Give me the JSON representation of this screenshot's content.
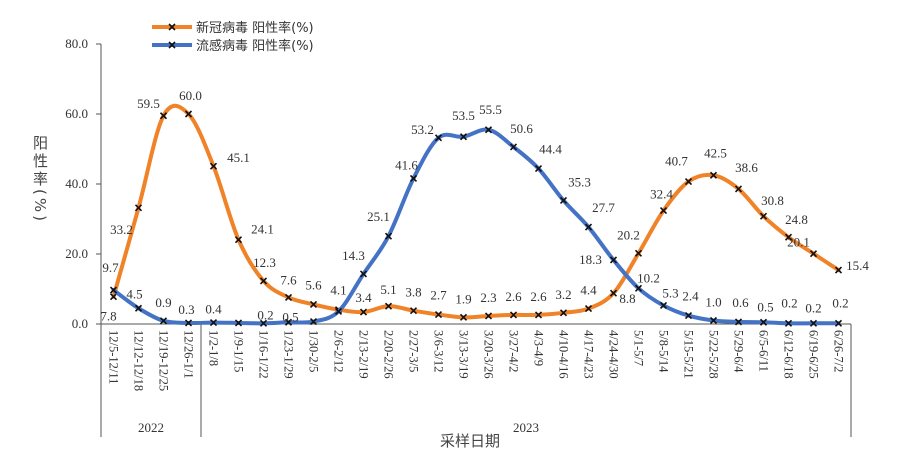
{
  "chart_data": {
    "type": "line",
    "title": "",
    "xlabel": "采样日期",
    "ylabel": "阳性率(%)",
    "ylim": [
      0,
      80
    ],
    "yticks": [
      "0.0",
      "20.0",
      "40.0",
      "60.0",
      "80.0"
    ],
    "grid": false,
    "legend": "top-left",
    "year_groups": [
      {
        "label": "2022",
        "count": 4
      },
      {
        "label": "2023",
        "count": 26
      }
    ],
    "categories": [
      "12/5-12/11",
      "12/12-12/18",
      "12/19-12/25",
      "12/26-1/1",
      "1/2-1/8",
      "1/9-1/15",
      "1/16-1/22",
      "1/23-1/29",
      "1/30-2/5",
      "2/6-2/12",
      "2/13-2/19",
      "2/20-2/26",
      "2/27-3/5",
      "3/6-3/12",
      "3/13-3/19",
      "3/20-3/26",
      "3/27-4/2",
      "4/3-4/9",
      "4/10-4/16",
      "4/17-4/23",
      "4/24-4/30",
      "5/1-5/7",
      "5/8-5/14",
      "5/15-5/21",
      "5/22-5/28",
      "5/29-6/4",
      "6/5-6/11",
      "6/12-6/18",
      "6/19-6/25",
      "6/26-7/2"
    ],
    "series": [
      {
        "name": "新冠病毒 阳性率(%)",
        "color": "#F08228",
        "values": [
          7.8,
          33.2,
          59.5,
          60.0,
          45.1,
          24.1,
          12.3,
          7.6,
          5.6,
          4.1,
          3.4,
          5.1,
          3.8,
          2.7,
          1.9,
          2.3,
          2.6,
          2.6,
          3.2,
          4.4,
          8.8,
          20.2,
          32.4,
          40.7,
          42.5,
          38.6,
          30.8,
          24.8,
          20.1,
          15.4
        ],
        "labels": [
          "7.8",
          "33.2",
          "59.5",
          "60.0",
          "45.1",
          "24.1",
          "12.3",
          "7.6",
          "5.6",
          "4.1",
          "3.4",
          "5.1",
          "3.8",
          "2.7",
          "1.9",
          "2.3",
          "2.6",
          "2.6",
          "3.2",
          "4.4",
          "8.8",
          "20.2",
          "32.4",
          "40.7",
          "42.5",
          "38.6",
          "30.8",
          "24.8",
          "20.1",
          "15.4"
        ]
      },
      {
        "name": "流感病毒 阳性率(%)",
        "color": "#4472C4",
        "values": [
          9.7,
          4.5,
          0.9,
          0.3,
          0.4,
          0.3,
          0.2,
          0.5,
          0.7,
          3.6,
          14.3,
          25.1,
          41.6,
          53.2,
          53.5,
          55.5,
          50.6,
          44.4,
          35.3,
          27.7,
          18.3,
          10.2,
          5.3,
          2.4,
          1.0,
          0.6,
          0.5,
          0.2,
          0.2,
          0.2
        ],
        "labels": [
          "9.7",
          "4.5",
          "0.9",
          "0.3",
          "0.4",
          null,
          "0.2",
          "0.5",
          null,
          null,
          "14.3",
          "25.1",
          "41.6",
          "53.2",
          "53.5",
          "55.5",
          "50.6",
          "44.4",
          "35.3",
          "27.7",
          "18.3",
          "10.2",
          "5.3",
          "2.4",
          "1.0",
          "0.6",
          "0.5",
          "0.2",
          "0.2",
          "0.2"
        ]
      }
    ]
  }
}
